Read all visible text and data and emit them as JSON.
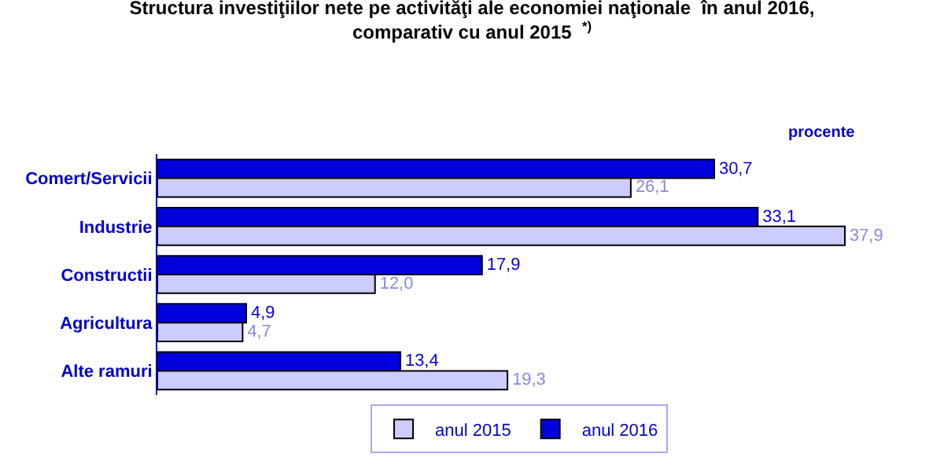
{
  "chart_data": {
    "type": "bar",
    "orientation": "horizontal",
    "title": "Structura investiţiilor nete pe activităţi ale economiei naţionale  în anul 2016,\ncomparativ cu anul 2015  $^{*)}$",
    "annotations": [
      "procente"
    ],
    "categories": [
      "Comert/Servicii",
      "Industrie",
      "Constructii",
      "Agricultura",
      "Alte ramuri"
    ],
    "series": [
      {
        "name": "anul 2015",
        "color": "#ccccff",
        "values": [
          26.1,
          37.9,
          12.0,
          4.7,
          19.3
        ],
        "value_labels": [
          "26,1",
          "37,9",
          "12,0",
          "4,7",
          "19,3"
        ]
      },
      {
        "name": "anul 2016",
        "color": "#0000dd",
        "values": [
          30.7,
          33.1,
          17.9,
          4.9,
          13.4
        ],
        "value_labels": [
          "30,7",
          "33,1",
          "17,9",
          "4,9",
          "13,4"
        ]
      }
    ],
    "legend": "bottom"
  }
}
